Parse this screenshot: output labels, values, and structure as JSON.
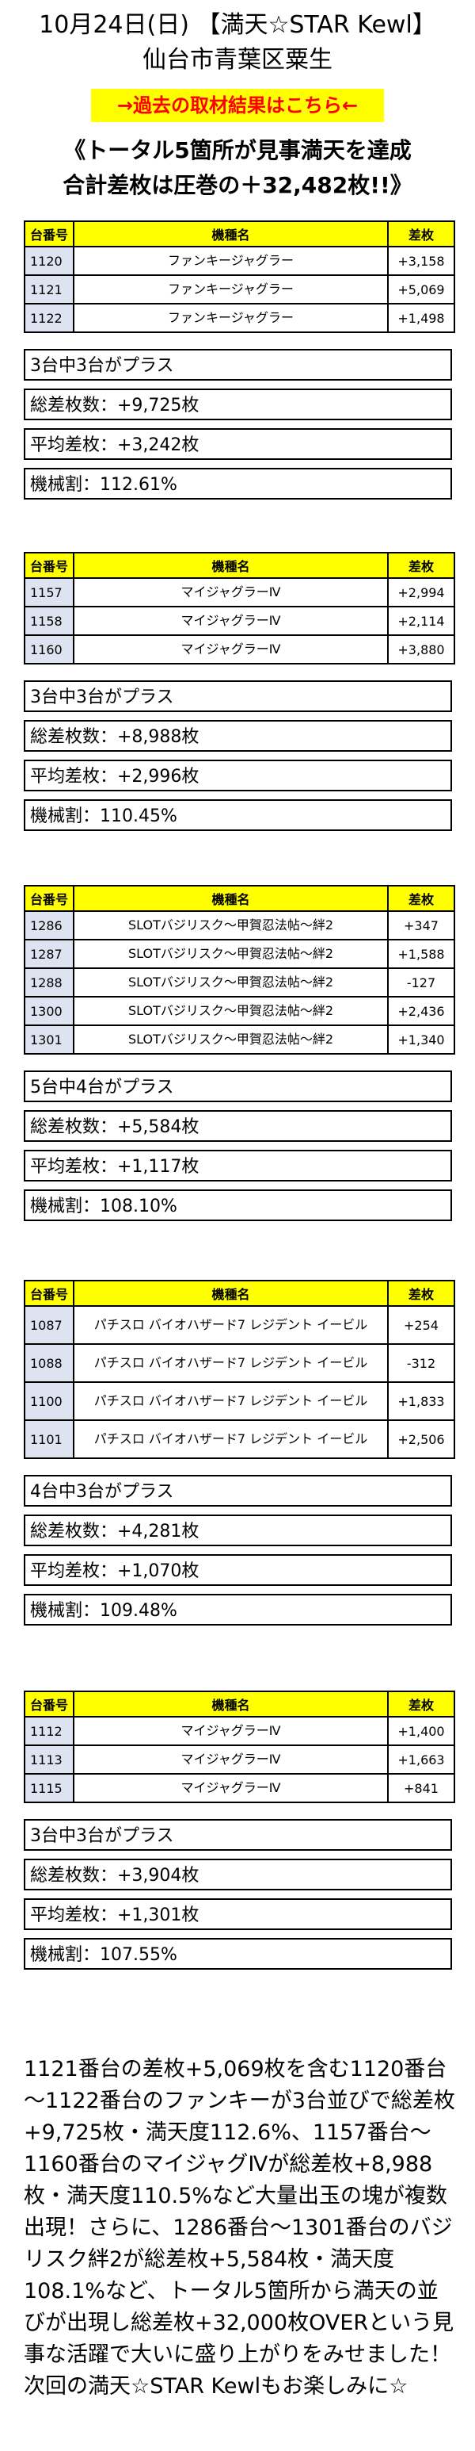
{
  "header": {
    "title_line1": "10月24日(日) 【満天☆STAR Kewl】",
    "title_line2": "仙台市青葉区粟生",
    "archive_link": "→過去の取材結果はこちら←",
    "headline_line1": "《トータル5箇所が見事満天を達成",
    "headline_line2": "合計差枚は圧巻の＋32,482枚!!》"
  },
  "table_headers": {
    "num": "台番号",
    "machine": "機種名",
    "diff": "差枚"
  },
  "groups": [
    {
      "rows": [
        {
          "num": "1120",
          "machine": "ファンキージャグラー",
          "diff": "+3,158"
        },
        {
          "num": "1121",
          "machine": "ファンキージャグラー",
          "diff": "+5,069"
        },
        {
          "num": "1122",
          "machine": "ファンキージャグラー",
          "diff": "+1,498"
        }
      ],
      "stats": [
        "3台中3台がプラス",
        "総差枚数：+9,725枚",
        "平均差枚：+3,242枚",
        "機械割：112.61%"
      ]
    },
    {
      "rows": [
        {
          "num": "1157",
          "machine": "マイジャグラーⅣ",
          "diff": "+2,994"
        },
        {
          "num": "1158",
          "machine": "マイジャグラーⅣ",
          "diff": "+2,114"
        },
        {
          "num": "1160",
          "machine": "マイジャグラーⅣ",
          "diff": "+3,880"
        }
      ],
      "stats": [
        "3台中3台がプラス",
        "総差枚数：+8,988枚",
        "平均差枚：+2,996枚",
        "機械割：110.45%"
      ]
    },
    {
      "rows": [
        {
          "num": "1286",
          "machine": "SLOTバジリスク～甲賀忍法帖～絆2",
          "diff": "+347"
        },
        {
          "num": "1287",
          "machine": "SLOTバジリスク～甲賀忍法帖～絆2",
          "diff": "+1,588"
        },
        {
          "num": "1288",
          "machine": "SLOTバジリスク～甲賀忍法帖～絆2",
          "diff": "-127"
        },
        {
          "num": "1300",
          "machine": "SLOTバジリスク～甲賀忍法帖～絆2",
          "diff": "+2,436"
        },
        {
          "num": "1301",
          "machine": "SLOTバジリスク～甲賀忍法帖～絆2",
          "diff": "+1,340"
        }
      ],
      "stats": [
        "5台中4台がプラス",
        "総差枚数：+5,584枚",
        "平均差枚：+1,117枚",
        "機械割：108.10%"
      ]
    },
    {
      "rows": [
        {
          "num": "1087",
          "machine": "パチスロ バイオハザード7 レジデント イービル",
          "diff": "+254"
        },
        {
          "num": "1088",
          "machine": "パチスロ バイオハザード7 レジデント イービル",
          "diff": "-312"
        },
        {
          "num": "1100",
          "machine": "パチスロ バイオハザード7 レジデント イービル",
          "diff": "+1,833"
        },
        {
          "num": "1101",
          "machine": "パチスロ バイオハザード7 レジデント イービル",
          "diff": "+2,506"
        }
      ],
      "stats": [
        "4台中3台がプラス",
        "総差枚数：+4,281枚",
        "平均差枚：+1,070枚",
        "機械割：109.48%"
      ]
    },
    {
      "rows": [
        {
          "num": "1112",
          "machine": "マイジャグラーⅣ",
          "diff": "+1,400"
        },
        {
          "num": "1113",
          "machine": "マイジャグラーⅣ",
          "diff": "+1,663"
        },
        {
          "num": "1115",
          "machine": "マイジャグラーⅣ",
          "diff": "+841"
        }
      ],
      "stats": [
        "3台中3台がプラス",
        "総差枚数：+3,904枚",
        "平均差枚：+1,301枚",
        "機械割：107.55%"
      ]
    }
  ],
  "summary": "1121番台の差枚+5,069枚を含む1120番台～1122番台のファンキーが3台並びで総差枚+9,725枚・満天度112.6%、1157番台～1160番台のマイジャグⅣが総差枚+8,988枚・満天度110.5%など大量出玉の塊が複数出現！さらに、1286番台～1301番台のバジリスク絆2が総差枚+5,584枚・満天度108.1%など、トータル5箇所から満天の並びが出現し総差枚+32,000枚OVERという見事な活躍で大いに盛り上がりをみせました！次回の満天☆STAR Kewlもお楽しみに☆"
}
